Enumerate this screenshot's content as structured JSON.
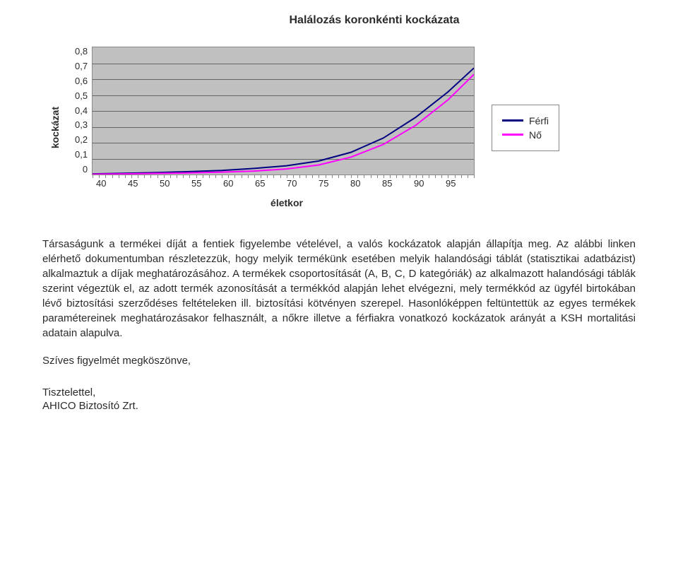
{
  "chart": {
    "type": "line",
    "title": "Halálozás koronkénti kockázata",
    "ylabel": "kockázat",
    "xlabel": "életkor",
    "xlim": [
      40,
      99
    ],
    "ylim": [
      0,
      0.8
    ],
    "y_ticks": [
      "0,8",
      "0,7",
      "0,6",
      "0,5",
      "0,4",
      "0,3",
      "0,2",
      "0,1",
      "0"
    ],
    "x_ticks": [
      "40",
      "45",
      "50",
      "55",
      "60",
      "65",
      "70",
      "75",
      "80",
      "85",
      "90",
      "95"
    ],
    "background_color": "#c0c0c0",
    "grid_color": "#666666",
    "border_color": "#888888",
    "title_fontsize": 16,
    "label_fontsize": 14,
    "tick_fontsize": 13,
    "series": [
      {
        "name": "Férfi",
        "color": "#000080",
        "line_width": 2,
        "x": [
          40,
          45,
          50,
          55,
          60,
          65,
          70,
          75,
          80,
          85,
          90,
          95,
          99
        ],
        "y": [
          0.004,
          0.008,
          0.012,
          0.018,
          0.026,
          0.038,
          0.055,
          0.085,
          0.14,
          0.23,
          0.36,
          0.52,
          0.67
        ]
      },
      {
        "name": "Nő",
        "color": "#ff00ff",
        "line_width": 2,
        "x": [
          40,
          45,
          50,
          55,
          60,
          65,
          70,
          75,
          80,
          85,
          90,
          95,
          99
        ],
        "y": [
          0.002,
          0.004,
          0.007,
          0.01,
          0.015,
          0.022,
          0.035,
          0.06,
          0.11,
          0.19,
          0.31,
          0.47,
          0.63
        ]
      }
    ],
    "legend": {
      "position": "right",
      "items": [
        "Férfi",
        "Nő"
      ]
    }
  },
  "body": {
    "paragraph": "Társaságunk a termékei díját a fentiek figyelembe vételével, a valós kockázatok alapján állapítja meg. Az alábbi linken elérhető dokumentumban részletezzük, hogy melyik termékünk esetében melyik halandósági táblát (statisztikai adatbázist) alkalmaztuk a díjak meghatározásához. A termékek csoportosítását (A, B, C, D kategóriák) az alkalmazott halandósági táblák szerint végeztük el, az adott termék azonosítását a termékkód alapján lehet elvégezni, mely termékkód az ügyfél birtokában lévő biztosítási szerződéses feltételeken ill. biztosítási kötvényen szerepel. Hasonlóképpen feltüntettük az egyes termékek paramétereinek meghatározásakor felhasznált, a nőkre illetve a férfiakra vonatkozó kockázatok arányát a KSH mortalitási adatain alapulva.",
    "closing": "Szíves figyelmét megköszönve,",
    "signature_line1": "Tisztelettel,",
    "signature_line2": "AHICO Biztosító Zrt."
  }
}
